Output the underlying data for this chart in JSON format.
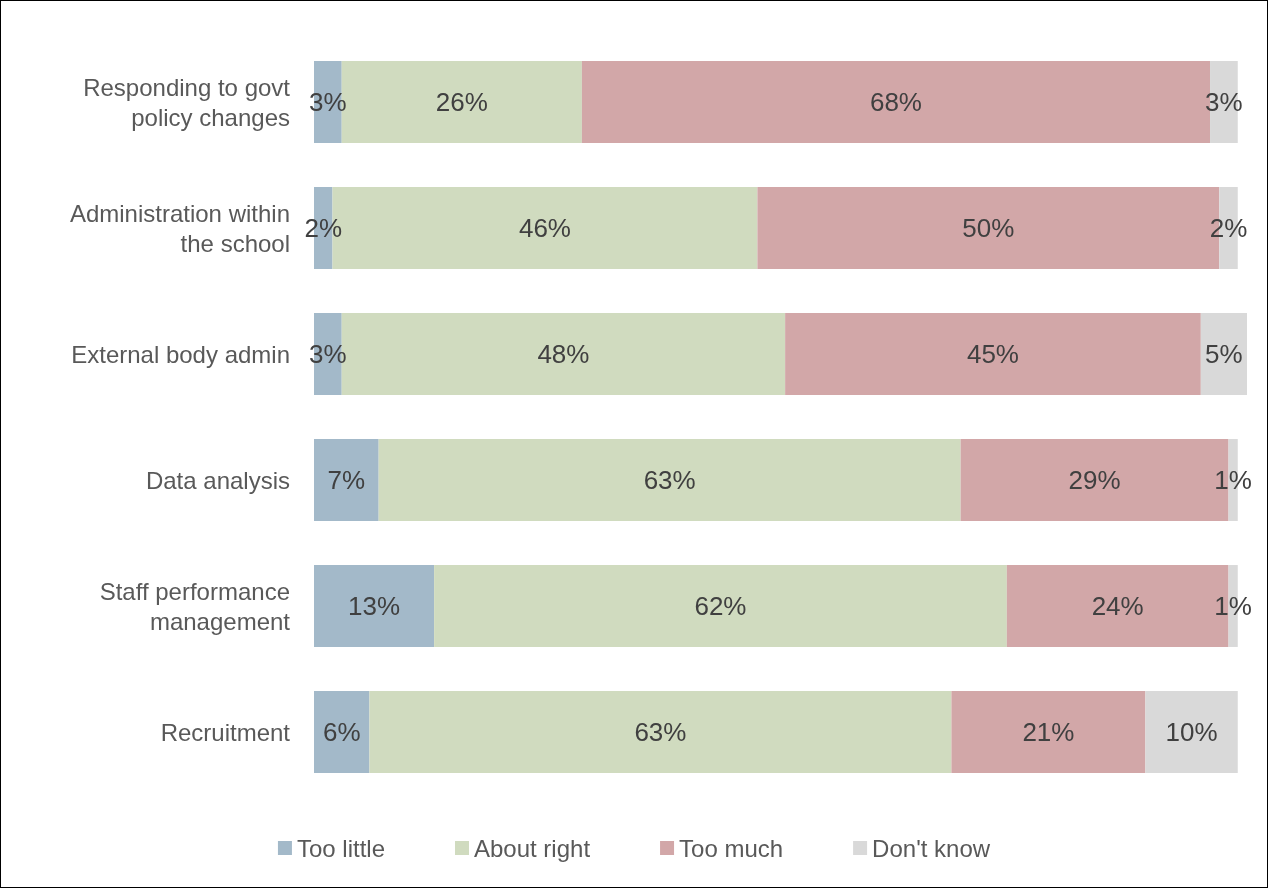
{
  "chart_data": {
    "type": "bar",
    "orientation": "horizontal",
    "stacked": true,
    "legend": "bottom",
    "categories": [
      "Responding to govt\npolicy changes",
      "Administration within\nthe school",
      "External body admin",
      "Data analysis",
      "Staff performance\nmanagement",
      "Recruitment"
    ],
    "series": [
      {
        "name": "Too little",
        "color": "#a3b9c9",
        "values": [
          3,
          2,
          3,
          7,
          13,
          6
        ],
        "value_labels": [
          "3%",
          "2%",
          "3%",
          "7%",
          "13%",
          "6%"
        ]
      },
      {
        "name": "About right",
        "color": "#d0dbbf",
        "values": [
          26,
          46,
          48,
          63,
          62,
          63
        ],
        "value_labels": [
          "26%",
          "46%",
          "48%",
          "63%",
          "62%",
          "63%"
        ]
      },
      {
        "name": "Too much",
        "color": "#d2a7a8",
        "values": [
          68,
          50,
          45,
          29,
          24,
          21
        ],
        "value_labels": [
          "68%",
          "50%",
          "45%",
          "29%",
          "24%",
          "21%"
        ]
      },
      {
        "name": "Don't know",
        "color": "#d9d9d9",
        "values": [
          3,
          2,
          5,
          1,
          1,
          10
        ],
        "value_labels": [
          "3%",
          "2%",
          "5%",
          "1%",
          "1%",
          "10%"
        ]
      }
    ]
  }
}
